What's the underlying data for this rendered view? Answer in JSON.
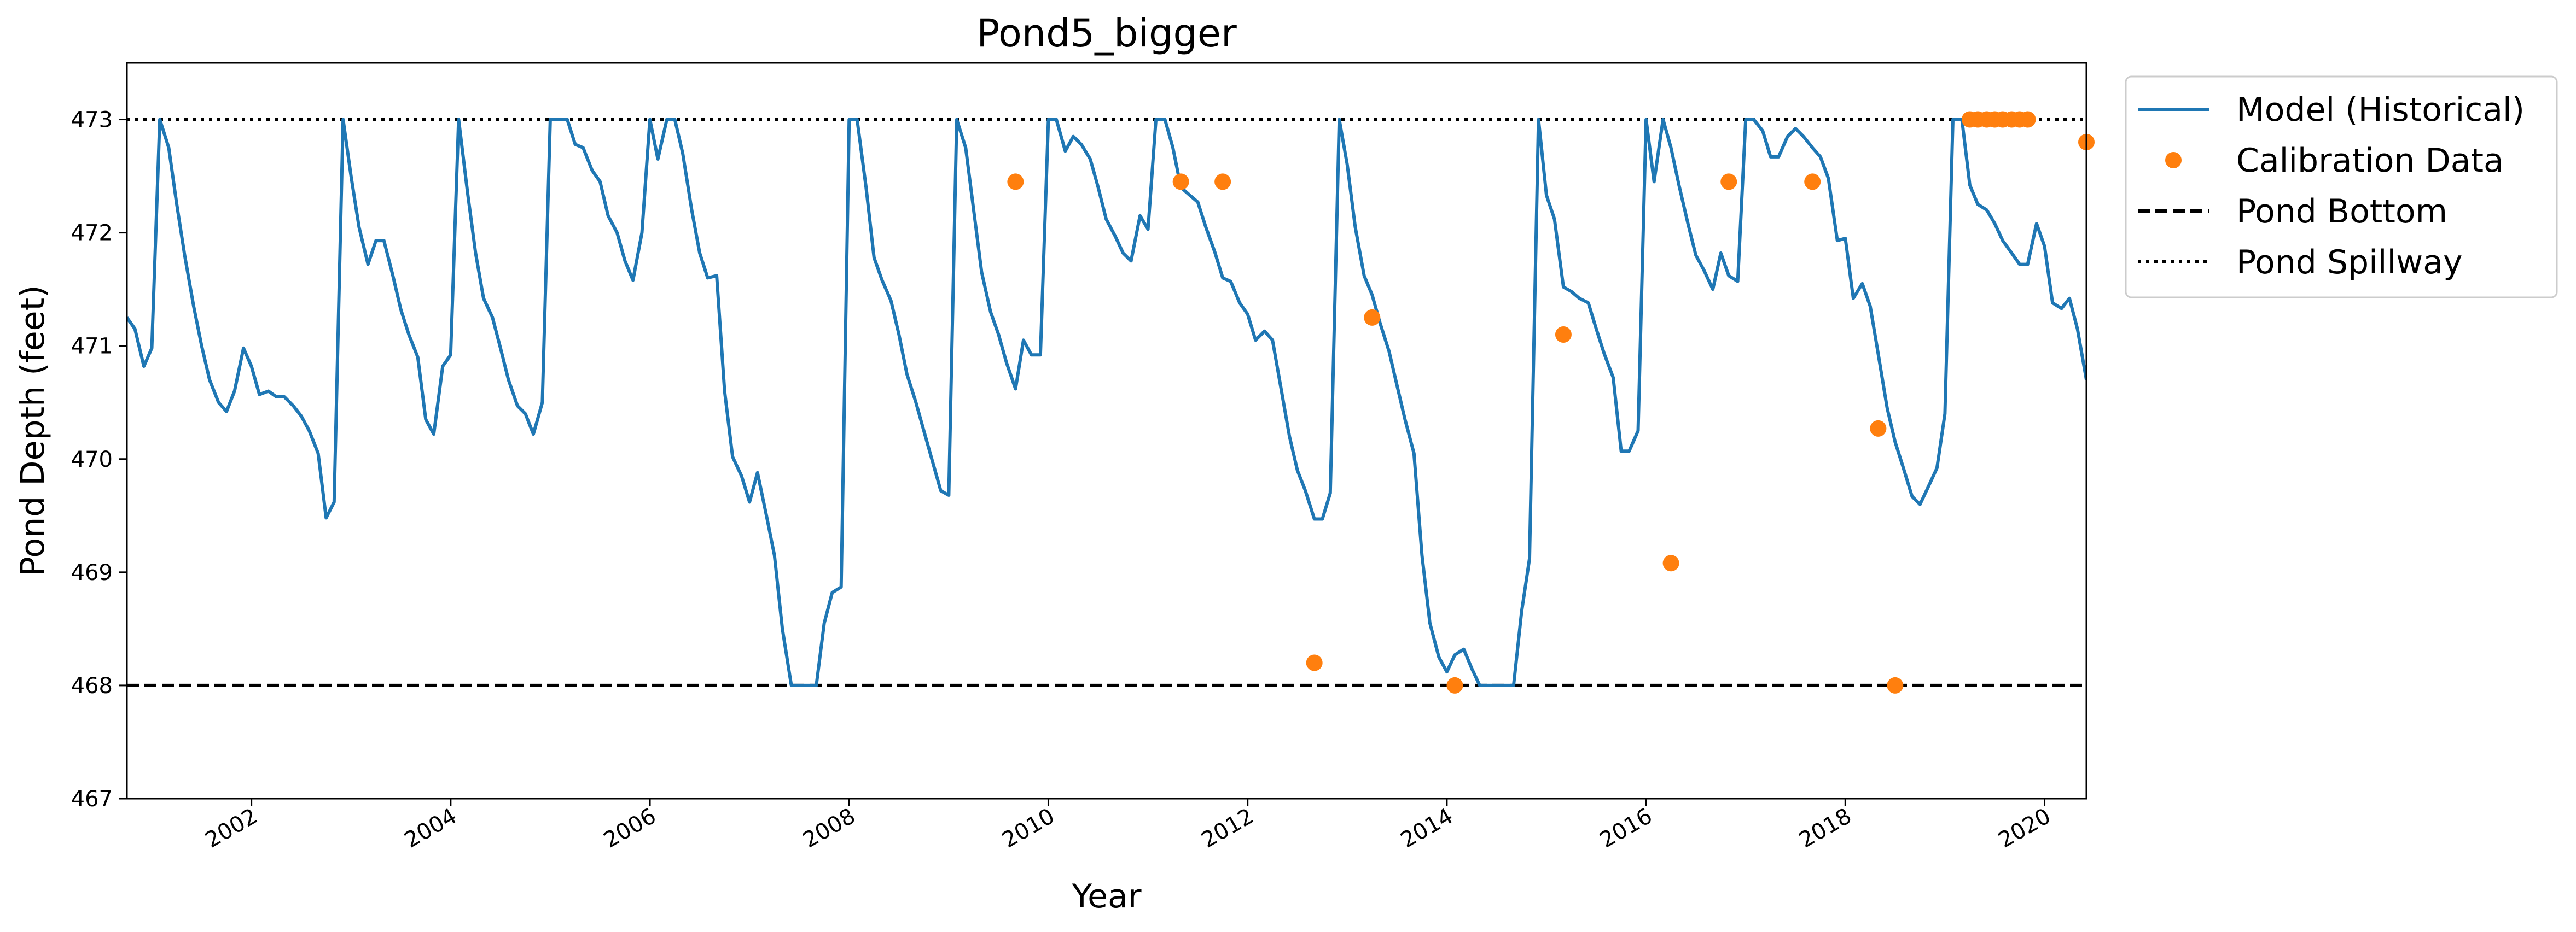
{
  "chart_data": {
    "type": "line",
    "title": "Pond5_bigger",
    "xlabel": "Year",
    "ylabel": "Pond Depth (feet)",
    "xlim": [
      2000.75,
      2020.42
    ],
    "ylim": [
      467,
      473.5
    ],
    "x_ticks": [
      "2002",
      "2004",
      "2006",
      "2008",
      "2010",
      "2012",
      "2014",
      "2016",
      "2018",
      "2020"
    ],
    "y_ticks": [
      "467",
      "468",
      "469",
      "470",
      "471",
      "472",
      "473"
    ],
    "grid": false,
    "legend_position": "outside-top-right",
    "series": [
      {
        "name": "Model (Historical)",
        "style": "line",
        "color": "#1f77b4",
        "points": [
          [
            2000.75,
            471.25
          ],
          [
            2000.83,
            471.15
          ],
          [
            2000.92,
            470.82
          ],
          [
            2001.0,
            470.98
          ],
          [
            2001.08,
            473.0
          ],
          [
            2001.17,
            472.75
          ],
          [
            2001.25,
            472.25
          ],
          [
            2001.33,
            471.8
          ],
          [
            2001.42,
            471.35
          ],
          [
            2001.5,
            471.0
          ],
          [
            2001.58,
            470.7
          ],
          [
            2001.67,
            470.5
          ],
          [
            2001.75,
            470.42
          ],
          [
            2001.83,
            470.6
          ],
          [
            2001.92,
            470.98
          ],
          [
            2002.0,
            470.82
          ],
          [
            2002.08,
            470.57
          ],
          [
            2002.17,
            470.6
          ],
          [
            2002.25,
            470.55
          ],
          [
            2002.33,
            470.55
          ],
          [
            2002.42,
            470.47
          ],
          [
            2002.5,
            470.38
          ],
          [
            2002.58,
            470.25
          ],
          [
            2002.67,
            470.05
          ],
          [
            2002.75,
            469.48
          ],
          [
            2002.83,
            469.62
          ],
          [
            2002.92,
            473.0
          ],
          [
            2003.0,
            472.5
          ],
          [
            2003.08,
            472.05
          ],
          [
            2003.17,
            471.72
          ],
          [
            2003.25,
            471.93
          ],
          [
            2003.33,
            471.93
          ],
          [
            2003.42,
            471.62
          ],
          [
            2003.5,
            471.32
          ],
          [
            2003.58,
            471.1
          ],
          [
            2003.67,
            470.9
          ],
          [
            2003.75,
            470.35
          ],
          [
            2003.83,
            470.22
          ],
          [
            2003.92,
            470.82
          ],
          [
            2004.0,
            470.92
          ],
          [
            2004.08,
            473.0
          ],
          [
            2004.17,
            472.35
          ],
          [
            2004.25,
            471.82
          ],
          [
            2004.33,
            471.42
          ],
          [
            2004.42,
            471.25
          ],
          [
            2004.5,
            470.98
          ],
          [
            2004.58,
            470.7
          ],
          [
            2004.67,
            470.47
          ],
          [
            2004.75,
            470.4
          ],
          [
            2004.83,
            470.22
          ],
          [
            2004.92,
            470.5
          ],
          [
            2005.0,
            473.0
          ],
          [
            2005.08,
            473.0
          ],
          [
            2005.17,
            473.0
          ],
          [
            2005.25,
            472.78
          ],
          [
            2005.33,
            472.75
          ],
          [
            2005.42,
            472.55
          ],
          [
            2005.5,
            472.45
          ],
          [
            2005.58,
            472.15
          ],
          [
            2005.67,
            472.0
          ],
          [
            2005.75,
            471.75
          ],
          [
            2005.83,
            471.58
          ],
          [
            2005.92,
            472.0
          ],
          [
            2006.0,
            473.0
          ],
          [
            2006.08,
            472.65
          ],
          [
            2006.17,
            473.0
          ],
          [
            2006.25,
            473.0
          ],
          [
            2006.33,
            472.7
          ],
          [
            2006.42,
            472.2
          ],
          [
            2006.5,
            471.82
          ],
          [
            2006.58,
            471.6
          ],
          [
            2006.67,
            471.62
          ],
          [
            2006.75,
            470.6
          ],
          [
            2006.83,
            470.02
          ],
          [
            2006.92,
            469.85
          ],
          [
            2007.0,
            469.62
          ],
          [
            2007.08,
            469.88
          ],
          [
            2007.17,
            469.5
          ],
          [
            2007.25,
            469.15
          ],
          [
            2007.33,
            468.5
          ],
          [
            2007.42,
            468.0
          ],
          [
            2007.5,
            468.0
          ],
          [
            2007.58,
            468.0
          ],
          [
            2007.67,
            468.0
          ],
          [
            2007.75,
            468.55
          ],
          [
            2007.83,
            468.82
          ],
          [
            2007.92,
            468.87
          ],
          [
            2008.0,
            473.0
          ],
          [
            2008.08,
            473.0
          ],
          [
            2008.17,
            472.4
          ],
          [
            2008.25,
            471.78
          ],
          [
            2008.33,
            471.58
          ],
          [
            2008.42,
            471.4
          ],
          [
            2008.5,
            471.1
          ],
          [
            2008.58,
            470.75
          ],
          [
            2008.67,
            470.5
          ],
          [
            2008.75,
            470.25
          ],
          [
            2008.83,
            470.0
          ],
          [
            2008.92,
            469.72
          ],
          [
            2009.0,
            469.68
          ],
          [
            2009.08,
            473.0
          ],
          [
            2009.17,
            472.75
          ],
          [
            2009.25,
            472.2
          ],
          [
            2009.33,
            471.65
          ],
          [
            2009.42,
            471.3
          ],
          [
            2009.5,
            471.1
          ],
          [
            2009.58,
            470.85
          ],
          [
            2009.67,
            470.62
          ],
          [
            2009.75,
            471.05
          ],
          [
            2009.83,
            470.92
          ],
          [
            2009.92,
            470.92
          ],
          [
            2010.0,
            473.0
          ],
          [
            2010.08,
            473.0
          ],
          [
            2010.17,
            472.72
          ],
          [
            2010.25,
            472.85
          ],
          [
            2010.33,
            472.78
          ],
          [
            2010.42,
            472.65
          ],
          [
            2010.5,
            472.4
          ],
          [
            2010.58,
            472.12
          ],
          [
            2010.67,
            471.97
          ],
          [
            2010.75,
            471.82
          ],
          [
            2010.83,
            471.75
          ],
          [
            2010.92,
            472.15
          ],
          [
            2011.0,
            472.03
          ],
          [
            2011.08,
            473.0
          ],
          [
            2011.17,
            473.0
          ],
          [
            2011.25,
            472.75
          ],
          [
            2011.33,
            472.4
          ],
          [
            2011.42,
            472.33
          ],
          [
            2011.5,
            472.27
          ],
          [
            2011.58,
            472.05
          ],
          [
            2011.67,
            471.83
          ],
          [
            2011.75,
            471.6
          ],
          [
            2011.83,
            471.57
          ],
          [
            2011.92,
            471.38
          ],
          [
            2012.0,
            471.28
          ],
          [
            2012.08,
            471.05
          ],
          [
            2012.17,
            471.13
          ],
          [
            2012.25,
            471.05
          ],
          [
            2012.33,
            470.65
          ],
          [
            2012.42,
            470.2
          ],
          [
            2012.5,
            469.9
          ],
          [
            2012.58,
            469.72
          ],
          [
            2012.67,
            469.47
          ],
          [
            2012.75,
            469.47
          ],
          [
            2012.83,
            469.7
          ],
          [
            2012.92,
            473.0
          ],
          [
            2013.0,
            472.6
          ],
          [
            2013.08,
            472.05
          ],
          [
            2013.17,
            471.62
          ],
          [
            2013.25,
            471.45
          ],
          [
            2013.33,
            471.2
          ],
          [
            2013.42,
            470.95
          ],
          [
            2013.5,
            470.65
          ],
          [
            2013.58,
            470.35
          ],
          [
            2013.67,
            470.05
          ],
          [
            2013.75,
            469.15
          ],
          [
            2013.83,
            468.55
          ],
          [
            2013.92,
            468.25
          ],
          [
            2014.0,
            468.12
          ],
          [
            2014.08,
            468.27
          ],
          [
            2014.17,
            468.32
          ],
          [
            2014.25,
            468.15
          ],
          [
            2014.33,
            468.0
          ],
          [
            2014.42,
            468.0
          ],
          [
            2014.5,
            468.0
          ],
          [
            2014.58,
            468.0
          ],
          [
            2014.67,
            468.0
          ],
          [
            2014.75,
            468.65
          ],
          [
            2014.83,
            469.12
          ],
          [
            2014.92,
            473.0
          ],
          [
            2015.0,
            472.33
          ],
          [
            2015.08,
            472.12
          ],
          [
            2015.17,
            471.52
          ],
          [
            2015.25,
            471.48
          ],
          [
            2015.33,
            471.42
          ],
          [
            2015.42,
            471.38
          ],
          [
            2015.5,
            471.15
          ],
          [
            2015.58,
            470.93
          ],
          [
            2015.67,
            470.72
          ],
          [
            2015.75,
            470.07
          ],
          [
            2015.83,
            470.07
          ],
          [
            2015.92,
            470.25
          ],
          [
            2016.0,
            473.0
          ],
          [
            2016.08,
            472.45
          ],
          [
            2016.17,
            473.0
          ],
          [
            2016.25,
            472.75
          ],
          [
            2016.33,
            472.42
          ],
          [
            2016.42,
            472.08
          ],
          [
            2016.5,
            471.8
          ],
          [
            2016.58,
            471.67
          ],
          [
            2016.67,
            471.5
          ],
          [
            2016.75,
            471.82
          ],
          [
            2016.83,
            471.62
          ],
          [
            2016.92,
            471.57
          ],
          [
            2017.0,
            473.0
          ],
          [
            2017.08,
            473.0
          ],
          [
            2017.17,
            472.9
          ],
          [
            2017.25,
            472.67
          ],
          [
            2017.33,
            472.67
          ],
          [
            2017.42,
            472.85
          ],
          [
            2017.5,
            472.92
          ],
          [
            2017.58,
            472.85
          ],
          [
            2017.67,
            472.75
          ],
          [
            2017.75,
            472.67
          ],
          [
            2017.83,
            472.48
          ],
          [
            2017.92,
            471.93
          ],
          [
            2018.0,
            471.95
          ],
          [
            2018.08,
            471.42
          ],
          [
            2018.17,
            471.55
          ],
          [
            2018.25,
            471.35
          ],
          [
            2018.33,
            470.93
          ],
          [
            2018.42,
            470.45
          ],
          [
            2018.5,
            470.15
          ],
          [
            2018.58,
            469.93
          ],
          [
            2018.67,
            469.67
          ],
          [
            2018.75,
            469.6
          ],
          [
            2018.83,
            469.75
          ],
          [
            2018.92,
            469.92
          ],
          [
            2019.0,
            470.4
          ],
          [
            2019.08,
            473.0
          ],
          [
            2019.17,
            473.0
          ],
          [
            2019.25,
            472.42
          ],
          [
            2019.33,
            472.25
          ],
          [
            2019.42,
            472.2
          ],
          [
            2019.5,
            472.08
          ],
          [
            2019.58,
            471.93
          ],
          [
            2019.67,
            471.82
          ],
          [
            2019.75,
            471.72
          ],
          [
            2019.83,
            471.72
          ],
          [
            2019.92,
            472.08
          ],
          [
            2020.0,
            471.88
          ],
          [
            2020.08,
            471.38
          ],
          [
            2020.17,
            471.33
          ],
          [
            2020.25,
            471.42
          ],
          [
            2020.33,
            471.15
          ],
          [
            2020.42,
            470.7
          ]
        ]
      },
      {
        "name": "Calibration Data",
        "style": "markers",
        "color": "#ff7f0e",
        "points": [
          [
            2009.67,
            472.45
          ],
          [
            2011.33,
            472.45
          ],
          [
            2011.75,
            472.45
          ],
          [
            2012.67,
            468.2
          ],
          [
            2013.25,
            471.25
          ],
          [
            2014.08,
            468.0
          ],
          [
            2015.17,
            471.1
          ],
          [
            2016.25,
            469.08
          ],
          [
            2016.83,
            472.45
          ],
          [
            2017.67,
            472.45
          ],
          [
            2018.33,
            470.27
          ],
          [
            2018.5,
            468.0
          ],
          [
            2019.25,
            473.0
          ],
          [
            2019.33,
            473.0
          ],
          [
            2019.42,
            473.0
          ],
          [
            2019.5,
            473.0
          ],
          [
            2019.58,
            473.0
          ],
          [
            2019.67,
            473.0
          ],
          [
            2019.75,
            473.0
          ],
          [
            2019.83,
            473.0
          ],
          [
            2020.42,
            472.8
          ]
        ]
      },
      {
        "name": "Pond Bottom",
        "style": "dashed",
        "color": "#000000",
        "y": 468
      },
      {
        "name": "Pond Spillway",
        "style": "dotted",
        "color": "#000000",
        "y": 473
      }
    ]
  }
}
